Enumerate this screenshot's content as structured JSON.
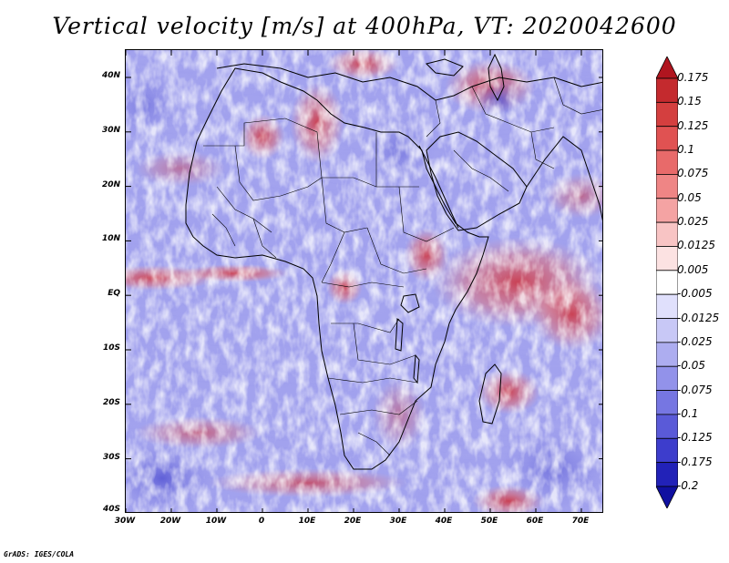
{
  "title": "Vertical velocity [m/s] at 400hPa, VT: 2020042600",
  "credit": "GrADS: IGES/COLA",
  "map": {
    "lat_labels": [
      "40N",
      "30N",
      "20N",
      "10N",
      "EQ",
      "10S",
      "20S",
      "30S",
      "40S"
    ],
    "lon_labels": [
      "30W",
      "20W",
      "10W",
      "0",
      "10E",
      "20E",
      "30E",
      "40E",
      "50E",
      "60E",
      "70E"
    ]
  },
  "colorbar": {
    "labels": [
      "0.175",
      "0.15",
      "0.125",
      "0.1",
      "0.075",
      "0.05",
      "0.025",
      "0.0125",
      "0.005",
      "-0.005",
      "-0.0125",
      "-0.025",
      "-0.05",
      "-0.075",
      "-0.1",
      "-0.125",
      "-0.175",
      "-0.2"
    ],
    "colors": [
      "#b0151f",
      "#c42a2e",
      "#d43f3f",
      "#e05252",
      "#e86a6a",
      "#ef8585",
      "#f4a3a3",
      "#f8c4c4",
      "#fce2e2",
      "#ffffff",
      "#e0e0fc",
      "#c8c8f6",
      "#adadf0",
      "#9292ea",
      "#7676e2",
      "#5a5ad8",
      "#3d3dcc",
      "#2222b8",
      "#1010a0"
    ]
  }
}
